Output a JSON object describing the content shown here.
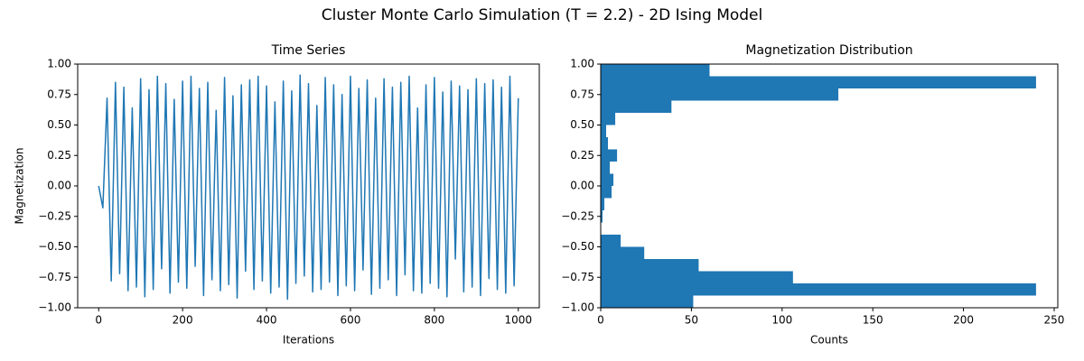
{
  "title": "Cluster Monte Carlo Simulation (T = 2.2) - 2D Ising Model",
  "chart_data": [
    {
      "type": "line",
      "title": "Time Series",
      "xlabel": "Iterations",
      "ylabel": "Magnetization",
      "x": [
        0,
        10,
        20,
        30,
        40,
        50,
        60,
        70,
        80,
        90,
        100,
        110,
        120,
        130,
        140,
        150,
        160,
        170,
        180,
        190,
        200,
        210,
        220,
        230,
        240,
        250,
        260,
        270,
        280,
        290,
        300,
        310,
        320,
        330,
        340,
        350,
        360,
        370,
        380,
        390,
        400,
        410,
        420,
        430,
        440,
        450,
        460,
        470,
        480,
        490,
        500,
        510,
        520,
        530,
        540,
        550,
        560,
        570,
        580,
        590,
        600,
        610,
        620,
        630,
        640,
        650,
        660,
        670,
        680,
        690,
        700,
        710,
        720,
        730,
        740,
        750,
        760,
        770,
        780,
        790,
        800,
        810,
        820,
        830,
        840,
        850,
        860,
        870,
        880,
        890,
        900,
        910,
        920,
        930,
        940,
        950,
        960,
        970,
        980,
        990,
        1000
      ],
      "series": [
        {
          "color": "#1f77b4",
          "values": [
            0.0,
            -0.18,
            0.72,
            -0.78,
            0.85,
            -0.72,
            0.81,
            -0.86,
            0.64,
            -0.83,
            0.88,
            -0.91,
            0.79,
            -0.85,
            0.9,
            -0.68,
            0.84,
            -0.88,
            0.71,
            -0.79,
            0.86,
            -0.84,
            0.9,
            -0.66,
            0.8,
            -0.9,
            0.85,
            -0.77,
            0.62,
            -0.86,
            0.89,
            -0.81,
            0.74,
            -0.92,
            0.83,
            -0.7,
            0.87,
            -0.85,
            0.9,
            -0.78,
            0.82,
            -0.88,
            0.69,
            -0.83,
            0.86,
            -0.93,
            0.78,
            -0.8,
            0.91,
            -0.74,
            0.84,
            -0.87,
            0.66,
            -0.85,
            0.89,
            -0.79,
            0.83,
            -0.9,
            0.75,
            -0.82,
            0.9,
            -0.86,
            0.8,
            -0.69,
            0.87,
            -0.89,
            0.72,
            -0.84,
            0.88,
            -0.77,
            0.81,
            -0.9,
            0.85,
            -0.73,
            0.9,
            -0.86,
            0.64,
            -0.88,
            0.83,
            -0.8,
            0.89,
            -0.84,
            0.77,
            -0.91,
            0.86,
            -0.6,
            0.82,
            -0.87,
            0.79,
            -0.83,
            0.88,
            -0.9,
            0.84,
            -0.76,
            0.87,
            -0.85,
            0.81,
            -0.88,
            0.9,
            -0.82,
            0.72
          ]
        }
      ],
      "xlim": [
        -50,
        1050
      ],
      "xticks": [
        0,
        200,
        400,
        600,
        800,
        1000
      ],
      "ylim": [
        -1,
        1
      ],
      "yticks": [
        {
          "value": -1,
          "label": "−1.00"
        },
        {
          "value": -0.75,
          "label": "−0.75"
        },
        {
          "value": -0.5,
          "label": "−0.50"
        },
        {
          "value": -0.25,
          "label": "−0.25"
        },
        {
          "value": 0,
          "label": "0.00"
        },
        {
          "value": 0.25,
          "label": "0.25"
        },
        {
          "value": 0.5,
          "label": "0.50"
        },
        {
          "value": 0.75,
          "label": "0.75"
        },
        {
          "value": 1,
          "label": "1.00"
        }
      ]
    },
    {
      "type": "histogram",
      "orientation": "horizontal",
      "title": "Magnetization Distribution",
      "xlabel": "Counts",
      "color": "#1f77b4",
      "bins": [
        -1.0,
        -0.9,
        -0.8,
        -0.7,
        -0.6,
        -0.5,
        -0.4,
        -0.3,
        -0.2,
        -0.1,
        0.0,
        0.1,
        0.2,
        0.3,
        0.4,
        0.5,
        0.6,
        0.7,
        0.8,
        0.9,
        1.0
      ],
      "values": [
        51,
        240,
        106,
        54,
        24,
        11,
        0,
        1,
        2,
        6,
        7,
        5,
        9,
        4,
        3,
        8,
        39,
        131,
        240,
        60
      ],
      "xlim": [
        0,
        252
      ],
      "xticks": [
        0,
        50,
        100,
        150,
        200,
        250
      ],
      "ylim": [
        -1,
        1
      ],
      "yticks": [
        {
          "value": -1,
          "label": "−1.00"
        },
        {
          "value": -0.75,
          "label": "−0.75"
        },
        {
          "value": -0.5,
          "label": "−0.50"
        },
        {
          "value": -0.25,
          "label": "−0.25"
        },
        {
          "value": 0,
          "label": "0.00"
        },
        {
          "value": 0.25,
          "label": "0.25"
        },
        {
          "value": 0.5,
          "label": "0.50"
        },
        {
          "value": 0.75,
          "label": "0.75"
        },
        {
          "value": 1,
          "label": "1.00"
        }
      ]
    }
  ]
}
